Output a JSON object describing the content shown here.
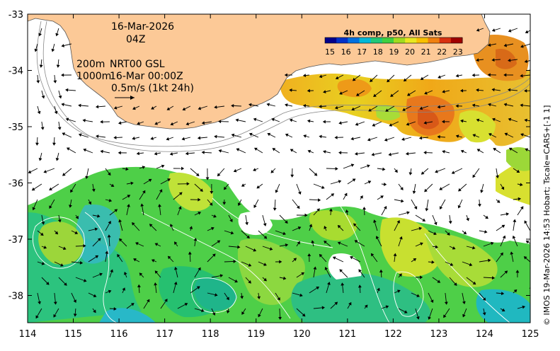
{
  "map": {
    "date": "16-Mar-2026",
    "hour": "04Z",
    "contours_label": "200m",
    "isobath_label": "1000m",
    "product": "NRT00 GSL",
    "valid_time": "16-Mar 00:00Z",
    "vector_scale": "0.5m/s (1kt 24h)",
    "credit": "© IMOS 19-Mar-2026 14:53 Hobart; Tscale=CARS+[-1 1]"
  },
  "colorbar": {
    "title": "4h comp, p50, All Sats",
    "ticks": [
      "15",
      "16",
      "17",
      "18",
      "19",
      "20",
      "21",
      "22",
      "23"
    ],
    "colors": [
      "#00008b",
      "#0030c8",
      "#0070e0",
      "#00b8d8",
      "#20c878",
      "#40d040",
      "#a0dc20",
      "#e8e820",
      "#f8c000",
      "#f08010",
      "#d83010",
      "#a00000"
    ]
  },
  "axes": {
    "lon_ticks": [
      "114",
      "115",
      "116",
      "117",
      "118",
      "119",
      "120",
      "121",
      "122",
      "123",
      "124",
      "125"
    ],
    "lat_ticks": [
      "-33",
      "-34",
      "-35",
      "-36",
      "-37",
      "-38"
    ],
    "lon_range": [
      114,
      125
    ],
    "lat_range": [
      -33,
      -38.5
    ]
  },
  "colors": {
    "land": "#fcc997",
    "coast": "#555555",
    "isobath": "#888888",
    "sst_warm": "#f0a820",
    "sst_mid": "#9ed830",
    "sst_cool": "#28c86a",
    "sst_cold": "#20b8d0"
  }
}
